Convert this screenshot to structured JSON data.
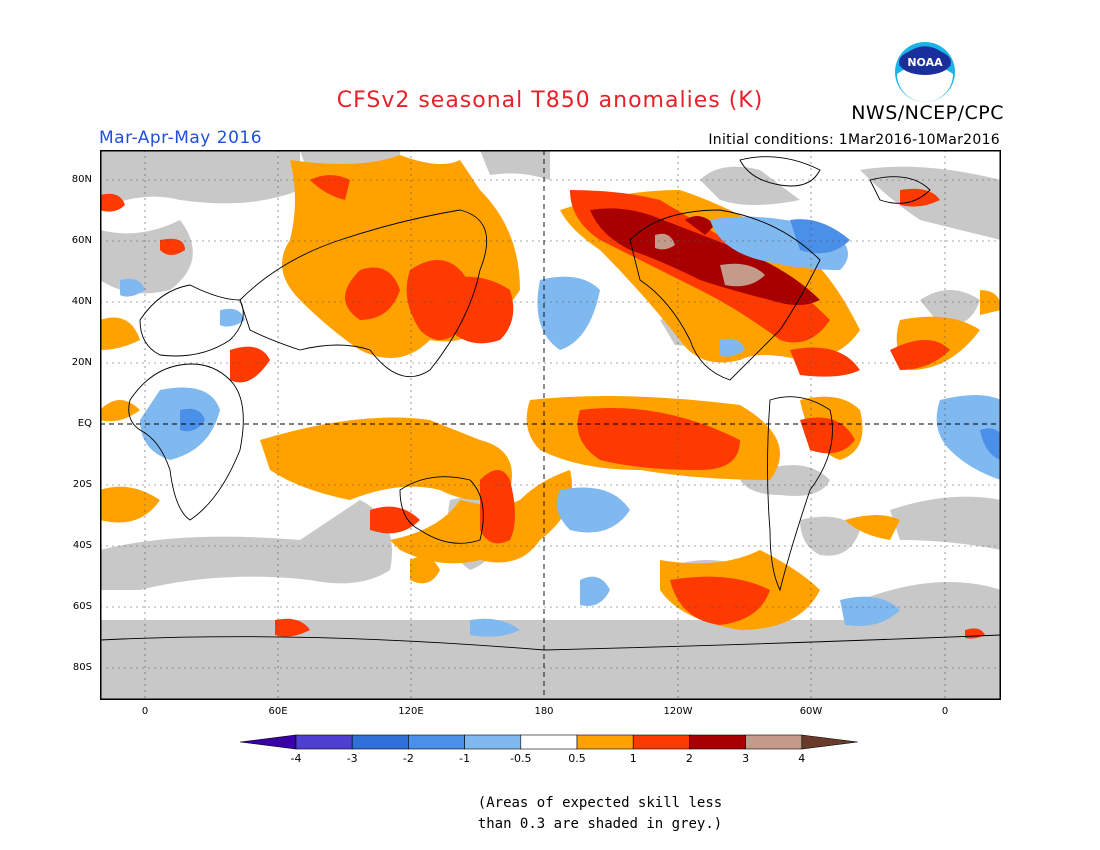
{
  "title": "CFSv2 seasonal T850 anomalies (K)",
  "period": "Mar-Apr-May 2016",
  "initial_conditions": "Initial conditions: 1Mar2016-10Mar2016",
  "agency": "NWS/NCEP/CPC",
  "logo_text": "NOAA",
  "latitude_labels": [
    "80N",
    "60N",
    "40N",
    "20N",
    "EQ",
    "20S",
    "40S",
    "60S",
    "80S"
  ],
  "longitude_labels": [
    "0",
    "60E",
    "120E",
    "180",
    "120W",
    "60W",
    "0"
  ],
  "colorbar": {
    "tick_labels": [
      "-4",
      "-3",
      "-2",
      "-1",
      "-0.5",
      "0.5",
      "1",
      "2",
      "3",
      "4"
    ],
    "colors": [
      "#3a00a8",
      "#4e3fd0",
      "#2e6fd8",
      "#4a8fe8",
      "#80b8f0",
      "#ffffff",
      "#ffa200",
      "#ff3a00",
      "#a80000",
      "#c49a8a",
      "#6a3a2a"
    ]
  },
  "skill_mask_color": "#c8c8c8",
  "note_lines": [
    "(Areas of expected skill less",
    "than 0.3 are shaded in grey.)"
  ]
}
